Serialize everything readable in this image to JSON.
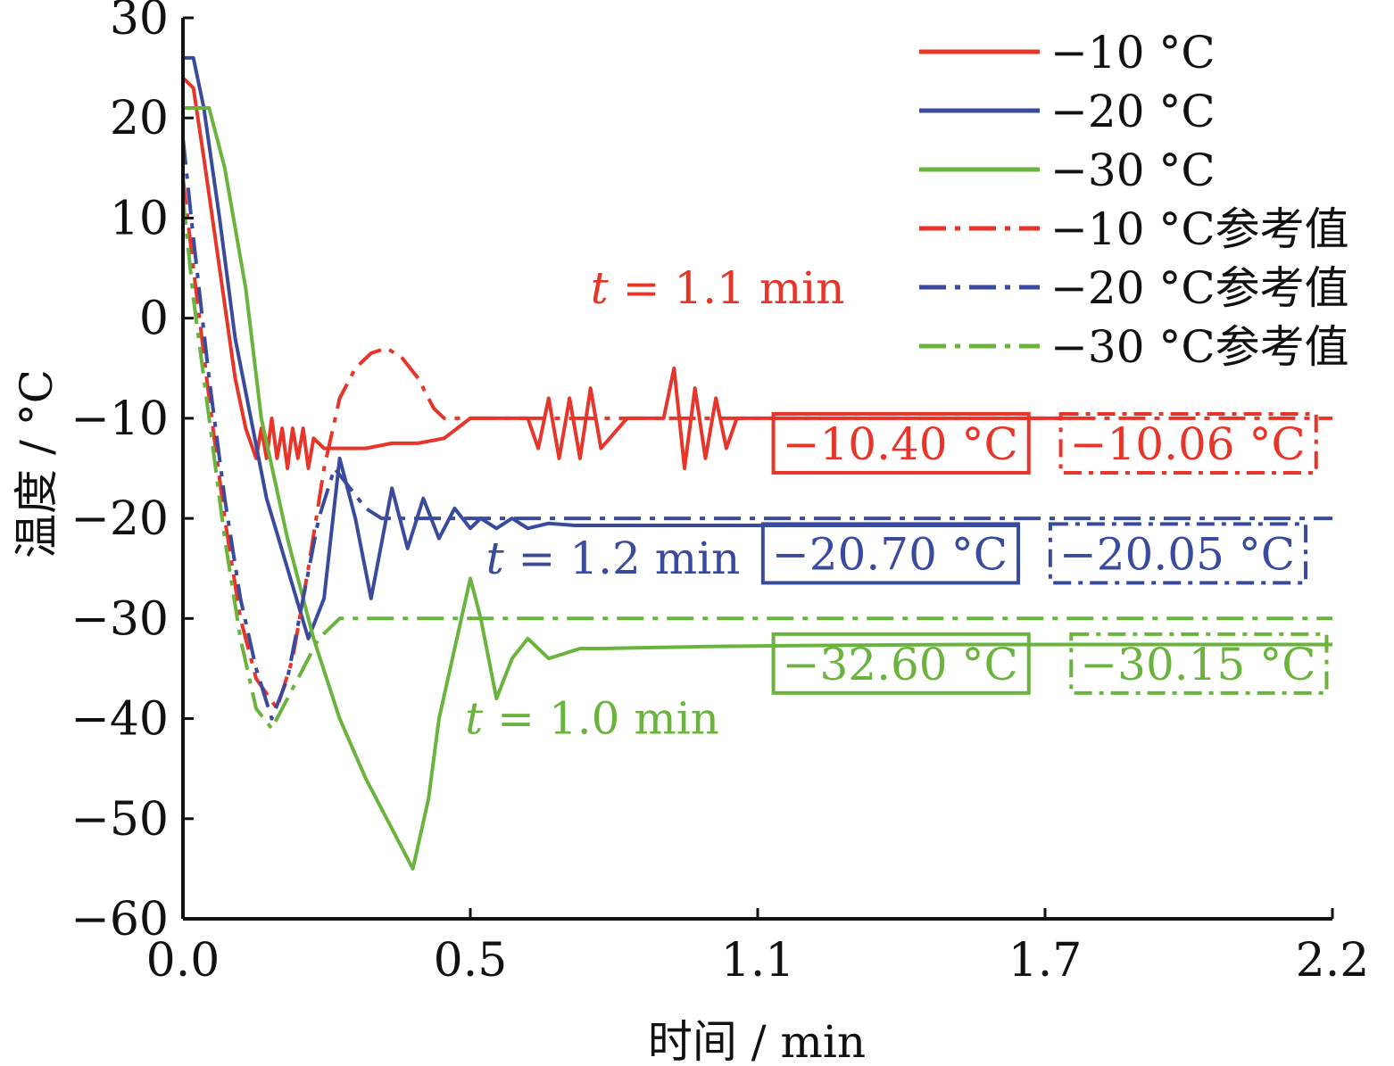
{
  "colors": {
    "red": "#e8352a",
    "blue": "#3a4a9c",
    "green": "#6ab43e",
    "axis": "#111111"
  },
  "chart_data": {
    "type": "line",
    "xlabel": "时间 / min",
    "ylabel": "温度 / °C",
    "xlim": [
      0,
      2.2
    ],
    "ylim": [
      -60,
      30
    ],
    "xticks": [
      {
        "value": 0.0,
        "label": "0.0"
      },
      {
        "value": 0.55,
        "label": "0.5"
      },
      {
        "value": 1.1,
        "label": "1.1"
      },
      {
        "value": 1.65,
        "label": "1.7"
      },
      {
        "value": 2.2,
        "label": "2.2"
      }
    ],
    "yticks": [
      30,
      20,
      10,
      0,
      -10,
      -20,
      -30,
      -40,
      -50,
      -60
    ],
    "legend_position": "top-right",
    "series": [
      {
        "name": "−10 °C",
        "color": "red",
        "style": "solid",
        "x": [
          0,
          0.02,
          0.04,
          0.07,
          0.1,
          0.12,
          0.14,
          0.15,
          0.16,
          0.17,
          0.18,
          0.19,
          0.2,
          0.21,
          0.22,
          0.23,
          0.24,
          0.25,
          0.27,
          0.3,
          0.35,
          0.4,
          0.45,
          0.5,
          0.55,
          0.6,
          0.66,
          0.68,
          0.7,
          0.72,
          0.74,
          0.76,
          0.78,
          0.8,
          0.85,
          0.92,
          0.94,
          0.96,
          0.98,
          1.0,
          1.02,
          1.04,
          1.06,
          1.08,
          1.1,
          1.3,
          1.5,
          1.7
        ],
        "y": [
          24,
          23,
          16,
          5,
          -6,
          -11,
          -14,
          -11,
          -14,
          -10,
          -14,
          -11,
          -15,
          -11,
          -14,
          -11,
          -15,
          -12,
          -13,
          -13,
          -13,
          -12.5,
          -12.5,
          -12,
          -10,
          -10,
          -10,
          -13,
          -8,
          -14,
          -8,
          -14,
          -7,
          -13,
          -10,
          -10,
          -5,
          -15,
          -7,
          -14,
          -8,
          -13,
          -10,
          -10,
          -10,
          -10,
          -10,
          -10
        ]
      },
      {
        "name": "−20 °C",
        "color": "blue",
        "style": "solid",
        "x": [
          0,
          0.02,
          0.04,
          0.07,
          0.1,
          0.13,
          0.16,
          0.2,
          0.24,
          0.27,
          0.3,
          0.33,
          0.36,
          0.4,
          0.43,
          0.46,
          0.49,
          0.52,
          0.55,
          0.57,
          0.6,
          0.63,
          0.66,
          0.7,
          0.75,
          0.8,
          1.0,
          1.2,
          1.4,
          1.6
        ],
        "y": [
          26,
          26,
          21,
          10,
          -2,
          -10,
          -18,
          -25,
          -32,
          -28,
          -14,
          -20,
          -28,
          -17,
          -23,
          -18,
          -22,
          -19,
          -21,
          -20,
          -21,
          -20,
          -21,
          -20.5,
          -20.7,
          -20.7,
          -20.7,
          -20.7,
          -20.7,
          -20.7
        ]
      },
      {
        "name": "−30 °C",
        "color": "green",
        "style": "solid",
        "x": [
          0,
          0.02,
          0.05,
          0.08,
          0.12,
          0.15,
          0.2,
          0.25,
          0.3,
          0.35,
          0.4,
          0.44,
          0.47,
          0.49,
          0.55,
          0.57,
          0.6,
          0.63,
          0.66,
          0.7,
          0.73,
          0.76,
          0.8,
          0.9,
          1.0,
          1.2,
          1.5,
          1.8,
          2.2
        ],
        "y": [
          21,
          21,
          21,
          15,
          3,
          -10,
          -22,
          -32,
          -40,
          -46,
          -51,
          -55,
          -48,
          -40,
          -26,
          -30,
          -38,
          -34,
          -32,
          -34,
          -33.5,
          -33,
          -33,
          -32.9,
          -32.8,
          -32.7,
          -32.6,
          -32.6,
          -32.6
        ]
      },
      {
        "name": "−10 °C参考值",
        "color": "red",
        "style": "dashdot",
        "x": [
          0,
          0.02,
          0.05,
          0.08,
          0.11,
          0.14,
          0.18,
          0.21,
          0.24,
          0.27,
          0.3,
          0.33,
          0.36,
          0.39,
          0.42,
          0.45,
          0.48,
          0.5,
          0.6,
          1.0,
          1.5,
          2.2
        ],
        "y": [
          14,
          5,
          -8,
          -20,
          -30,
          -36,
          -39,
          -34,
          -25,
          -15,
          -8,
          -5,
          -3.5,
          -3,
          -4,
          -6,
          -9,
          -10,
          -10,
          -10,
          -10,
          -10
        ]
      },
      {
        "name": "−20 °C参考值",
        "color": "blue",
        "style": "dashdot",
        "x": [
          0,
          0.02,
          0.05,
          0.08,
          0.11,
          0.14,
          0.17,
          0.2,
          0.23,
          0.26,
          0.29,
          0.32,
          0.35,
          0.38,
          0.42,
          0.5,
          1.0,
          1.5,
          2.2
        ],
        "y": [
          18,
          8,
          -6,
          -18,
          -28,
          -35,
          -40,
          -36,
          -28,
          -20,
          -15,
          -17,
          -19,
          -20,
          -20,
          -20,
          -20,
          -20,
          -20
        ]
      },
      {
        "name": "−30 °C参考值",
        "color": "green",
        "style": "dashdot",
        "x": [
          0,
          0.02,
          0.05,
          0.08,
          0.11,
          0.14,
          0.17,
          0.2,
          0.23,
          0.26,
          0.3,
          0.35,
          0.4,
          0.5,
          1.0,
          1.5,
          2.2
        ],
        "y": [
          12,
          2,
          -10,
          -22,
          -32,
          -39,
          -41,
          -38,
          -35,
          -32,
          -30,
          -30,
          -30,
          -30,
          -30,
          -30,
          -30
        ]
      }
    ],
    "annotations": [
      {
        "text": "t = 1.1 min",
        "italic_prefix": "t",
        "rest": " = 1.1 min",
        "color": "red",
        "x": 0.78,
        "y": 1.5
      },
      {
        "text": "t = 1.2 min",
        "italic_prefix": "t",
        "rest": " = 1.2 min",
        "color": "blue",
        "x": 0.58,
        "y": -25.5
      },
      {
        "text": "t = 1.0 min",
        "italic_prefix": "t",
        "rest": " = 1.0 min",
        "color": "green",
        "x": 0.54,
        "y": -41.5
      }
    ],
    "value_boxes": [
      {
        "text": "−10.40 °C",
        "color": "red",
        "style": "solid",
        "x": 1.13,
        "y": -12.5
      },
      {
        "text": "−10.06 °C",
        "color": "red",
        "style": "dashdot",
        "x": 1.68,
        "y": -12.5
      },
      {
        "text": "−20.70 °C",
        "color": "blue",
        "style": "solid",
        "x": 1.11,
        "y": -23.5
      },
      {
        "text": "−20.05 °C",
        "color": "blue",
        "style": "dashdot",
        "x": 1.66,
        "y": -23.5
      },
      {
        "text": "−32.60 °C",
        "color": "green",
        "style": "solid",
        "x": 1.13,
        "y": -34.5
      },
      {
        "text": "−30.15 °C",
        "color": "green",
        "style": "dashdot",
        "x": 1.7,
        "y": -34.5
      }
    ]
  }
}
